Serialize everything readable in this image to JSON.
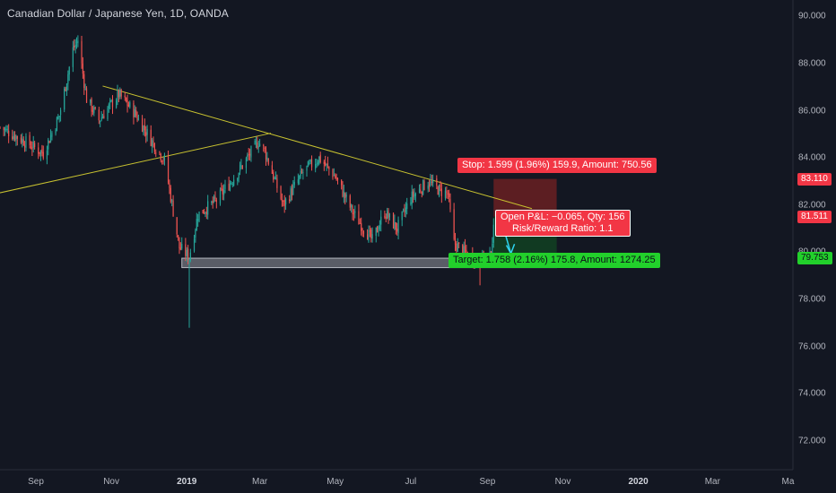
{
  "header": {
    "title": "Canadian Dollar / Japanese Yen, 1D, OANDA"
  },
  "price_axis": {
    "ticks": [
      "90.000",
      "88.000",
      "86.000",
      "84.000",
      "82.000",
      "80.000",
      "78.000",
      "76.000",
      "74.000",
      "72.000"
    ]
  },
  "time_axis": {
    "ticks": [
      {
        "label": "Sep",
        "bold": false
      },
      {
        "label": "Nov",
        "bold": false
      },
      {
        "label": "2019",
        "bold": true
      },
      {
        "label": "Mar",
        "bold": false
      },
      {
        "label": "May",
        "bold": false
      },
      {
        "label": "Jul",
        "bold": false
      },
      {
        "label": "Sep",
        "bold": false
      },
      {
        "label": "Nov",
        "bold": false
      },
      {
        "label": "2020",
        "bold": true
      },
      {
        "label": "Mar",
        "bold": false
      },
      {
        "label": "Ma",
        "bold": false
      }
    ]
  },
  "price_tags": {
    "stop": {
      "value": "83.110",
      "color": "#f23645"
    },
    "current": {
      "value": "81.511",
      "color": "#f23645"
    },
    "target": {
      "value": "79.753",
      "color": "#22d02b"
    }
  },
  "position": {
    "stop_label": "Stop: 1.599 (1.96%) 159.9, Amount: 750.56",
    "pnl_line1": "Open P&L: −0.065, Qty: 156",
    "pnl_line2": "Risk/Reward Ratio: 1.1",
    "target_label": "Target: 1.758 (2.16%) 175.8, Amount: 1274.25",
    "entry": 81.511,
    "stop": 83.11,
    "target": 79.753
  },
  "colors": {
    "background": "#131722",
    "up_candle": "#26a69a",
    "down_candle": "#ef5350",
    "trendline": "#c8c230",
    "support_zone": "#9598a1",
    "stop_zone": "#5c1e22",
    "target_zone": "#113a22",
    "arrow": "#2ed3f0"
  },
  "chart_data": {
    "type": "candlestick",
    "title": "Canadian Dollar / Japanese Yen, 1D, OANDA",
    "ylim": [
      71.5,
      90.2
    ],
    "x_range": [
      "2018-08-03",
      "2020-05-05"
    ],
    "anchors": [
      {
        "date": "2018-08-03",
        "close": 85.3
      },
      {
        "date": "2018-08-20",
        "close": 84.8
      },
      {
        "date": "2018-09-07",
        "close": 84.2
      },
      {
        "date": "2018-09-20",
        "close": 85.8
      },
      {
        "date": "2018-10-01",
        "close": 88.6
      },
      {
        "date": "2018-10-05",
        "close": 89.0
      },
      {
        "date": "2018-10-12",
        "close": 86.5
      },
      {
        "date": "2018-10-22",
        "close": 85.6
      },
      {
        "date": "2018-11-07",
        "close": 86.7
      },
      {
        "date": "2018-11-20",
        "close": 85.9
      },
      {
        "date": "2018-12-05",
        "close": 84.6
      },
      {
        "date": "2018-12-14",
        "close": 83.9
      },
      {
        "date": "2018-12-26",
        "close": 80.2
      },
      {
        "date": "2019-01-03",
        "close": 79.8
      },
      {
        "date": "2019-01-10",
        "close": 81.6
      },
      {
        "date": "2019-01-25",
        "close": 82.2
      },
      {
        "date": "2019-02-10",
        "close": 83.3
      },
      {
        "date": "2019-02-28",
        "close": 84.7
      },
      {
        "date": "2019-03-05",
        "close": 84.3
      },
      {
        "date": "2019-03-20",
        "close": 82.0
      },
      {
        "date": "2019-04-05",
        "close": 83.4
      },
      {
        "date": "2019-04-18",
        "close": 84.0
      },
      {
        "date": "2019-05-01",
        "close": 83.2
      },
      {
        "date": "2019-05-15",
        "close": 81.7
      },
      {
        "date": "2019-05-31",
        "close": 80.5
      },
      {
        "date": "2019-06-10",
        "close": 81.7
      },
      {
        "date": "2019-06-20",
        "close": 81.0
      },
      {
        "date": "2019-07-01",
        "close": 82.3
      },
      {
        "date": "2019-07-15",
        "close": 83.0
      },
      {
        "date": "2019-07-25",
        "close": 82.6
      },
      {
        "date": "2019-07-31",
        "close": 82.5
      },
      {
        "date": "2019-08-05",
        "close": 80.4
      },
      {
        "date": "2019-08-15",
        "close": 79.9
      },
      {
        "date": "2019-08-26",
        "close": 79.7
      },
      {
        "date": "2019-09-03",
        "close": 79.8
      },
      {
        "date": "2019-09-06",
        "close": 80.9
      }
    ],
    "wicks": [
      {
        "date": "2019-01-03",
        "low": 76.8
      },
      {
        "date": "2019-08-26",
        "low": 78.6
      },
      {
        "date": "2018-10-05",
        "high": 89.2
      }
    ],
    "trendlines": [
      {
        "from": {
          "date": "2018-10-25",
          "price": 87.05
        },
        "to": {
          "date": "2019-10-07",
          "price": 81.85
        }
      },
      {
        "from": {
          "date": "2018-07-06",
          "price": 82.2
        },
        "to": {
          "date": "2019-03-10",
          "price": 85.05
        }
      }
    ],
    "support_zone": {
      "from": "2018-12-28",
      "to": "2019-10-27",
      "low": 79.35,
      "high": 79.75
    },
    "position_box": {
      "from": "2019-09-06",
      "to": "2019-10-27"
    }
  }
}
